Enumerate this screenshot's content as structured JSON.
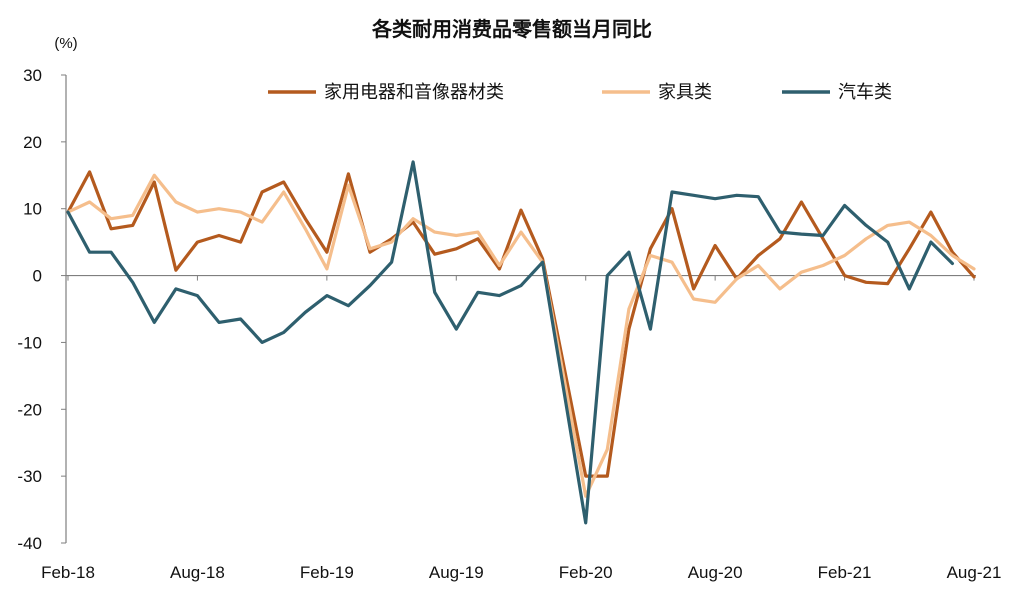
{
  "chart_data": {
    "type": "line",
    "title": "各类耐用消费品零售额当月同比",
    "ylabel": "",
    "unit_label": "(%)",
    "xlabel": "",
    "ylim": [
      -40,
      30
    ],
    "yticks": [
      30,
      20,
      10,
      0,
      -10,
      -20,
      -30,
      -40
    ],
    "x": [
      "Feb-18",
      "Mar-18",
      "Apr-18",
      "May-18",
      "Jun-18",
      "Jul-18",
      "Aug-18",
      "Sep-18",
      "Oct-18",
      "Nov-18",
      "Dec-18",
      "Jan-19",
      "Feb-19",
      "Mar-19",
      "Apr-19",
      "May-19",
      "Jun-19",
      "Jul-19",
      "Aug-19",
      "Sep-19",
      "Oct-19",
      "Nov-19",
      "Dec-19",
      "Jan-20",
      "Feb-20",
      "Mar-20",
      "Apr-20",
      "May-20",
      "Jun-20",
      "Jul-20",
      "Aug-20",
      "Sep-20",
      "Oct-20",
      "Nov-20",
      "Dec-20",
      "Jan-21",
      "Feb-21",
      "Mar-21",
      "Apr-21",
      "May-21",
      "Jun-21",
      "Jul-21",
      "Aug-21"
    ],
    "xtick_labels": [
      "Feb-18",
      "Aug-18",
      "Feb-19",
      "Aug-19",
      "Feb-20",
      "Aug-20",
      "Feb-21",
      "Aug-21"
    ],
    "grid": false,
    "legend_position": "top",
    "series": [
      {
        "name": "家用电器和音像器材类",
        "color": "#b45a1e",
        "values": [
          9.5,
          15.5,
          7,
          7.5,
          14,
          0.8,
          5,
          6,
          5,
          12.5,
          14,
          8.5,
          3.5,
          15.2,
          3.5,
          5.5,
          8,
          3.2,
          4,
          5.5,
          1,
          9.8,
          2.5,
          null,
          -30,
          -30,
          -8,
          4,
          10,
          -2,
          4.5,
          -0.5,
          3,
          5.5,
          11,
          5.5,
          0,
          -1,
          -1.2,
          4,
          9.5,
          3.5,
          -0.2
        ]
      },
      {
        "name": "家具类",
        "color": "#f5be8c",
        "values": [
          9.5,
          11,
          8.5,
          9,
          15,
          11,
          9.5,
          10,
          9.5,
          8,
          12.5,
          7,
          1,
          13.5,
          4,
          5,
          8.5,
          6.5,
          6,
          6.5,
          1.5,
          6.5,
          2,
          null,
          -33,
          -26,
          -5,
          3,
          2,
          -3.5,
          -4,
          -0.5,
          1.5,
          -2,
          0.5,
          1.5,
          3,
          5.5,
          7.5,
          8,
          6,
          3,
          1
        ]
      },
      {
        "name": "汽车类",
        "color": "#2e5f6e",
        "values": [
          9.5,
          3.5,
          3.5,
          -1,
          -7,
          -2,
          -3,
          -7,
          -6.5,
          -10,
          -8.5,
          -5.5,
          -3,
          -4.5,
          -1.5,
          2,
          17,
          -2.5,
          -8,
          -2.5,
          -3,
          -1.5,
          2,
          null,
          -37,
          0,
          3.5,
          -8,
          12.5,
          12,
          11.5,
          12,
          11.8,
          6.5,
          6.2,
          6,
          10.5,
          7.5,
          5,
          -2,
          5,
          1.8,
          null
        ]
      }
    ]
  }
}
